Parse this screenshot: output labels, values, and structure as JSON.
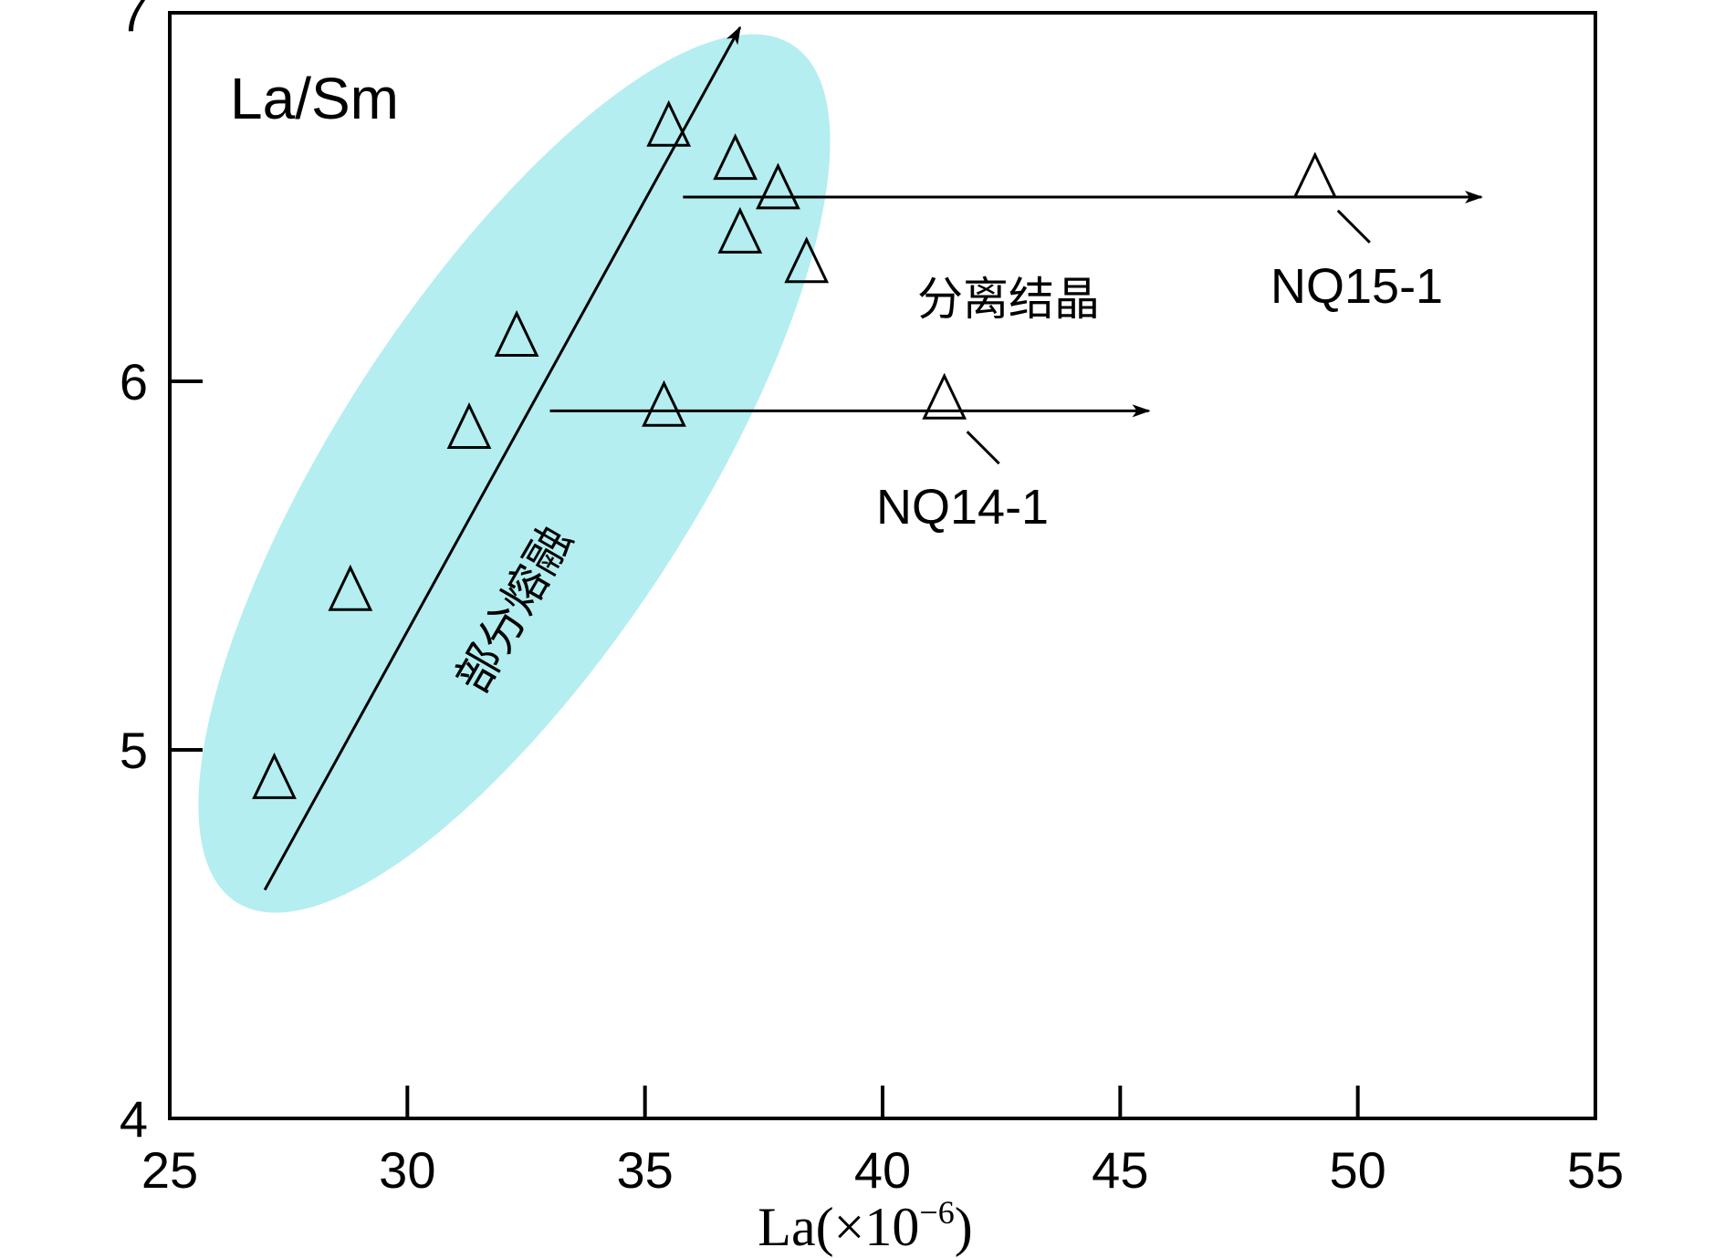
{
  "chart_data": {
    "type": "scatter",
    "ylabel": "La/Sm",
    "xlabel": "La(×10",
    "xlabel_sup": "−6",
    "xlabel_close": ")",
    "xlim": [
      25,
      55
    ],
    "ylim": [
      4,
      7
    ],
    "xticks": [
      25,
      30,
      35,
      40,
      45,
      50,
      55
    ],
    "yticks": [
      4,
      5,
      6,
      7
    ],
    "grid": false,
    "marker": "open-triangle",
    "series": [
      {
        "points": [
          {
            "x": 27.2,
            "y": 4.92
          },
          {
            "x": 28.8,
            "y": 5.43
          },
          {
            "x": 31.3,
            "y": 5.87
          },
          {
            "x": 32.3,
            "y": 6.12
          },
          {
            "x": 35.4,
            "y": 5.93
          },
          {
            "x": 35.5,
            "y": 6.69
          },
          {
            "x": 36.9,
            "y": 6.6
          },
          {
            "x": 37.0,
            "y": 6.4
          },
          {
            "x": 37.8,
            "y": 6.52
          },
          {
            "x": 38.4,
            "y": 6.32
          },
          {
            "x": 41.3,
            "y": 5.95
          },
          {
            "x": 49.1,
            "y": 6.55
          }
        ]
      }
    ],
    "ellipse_color": "#b4eef0",
    "arrows": [
      {
        "from": [
          27.0,
          4.62
        ],
        "to": [
          37.0,
          6.96
        ],
        "label": "部分熔融"
      },
      {
        "from": [
          35.8,
          6.5
        ],
        "to": [
          52.6,
          6.5
        ],
        "label": "分离结晶"
      },
      {
        "from": [
          33.0,
          5.92
        ],
        "to": [
          45.6,
          5.92
        ]
      }
    ],
    "annotations": [
      {
        "text": "NQ15-1",
        "point": [
          49.1,
          6.55
        ]
      },
      {
        "text": "NQ14-1",
        "point": [
          41.3,
          5.95
        ]
      }
    ]
  }
}
